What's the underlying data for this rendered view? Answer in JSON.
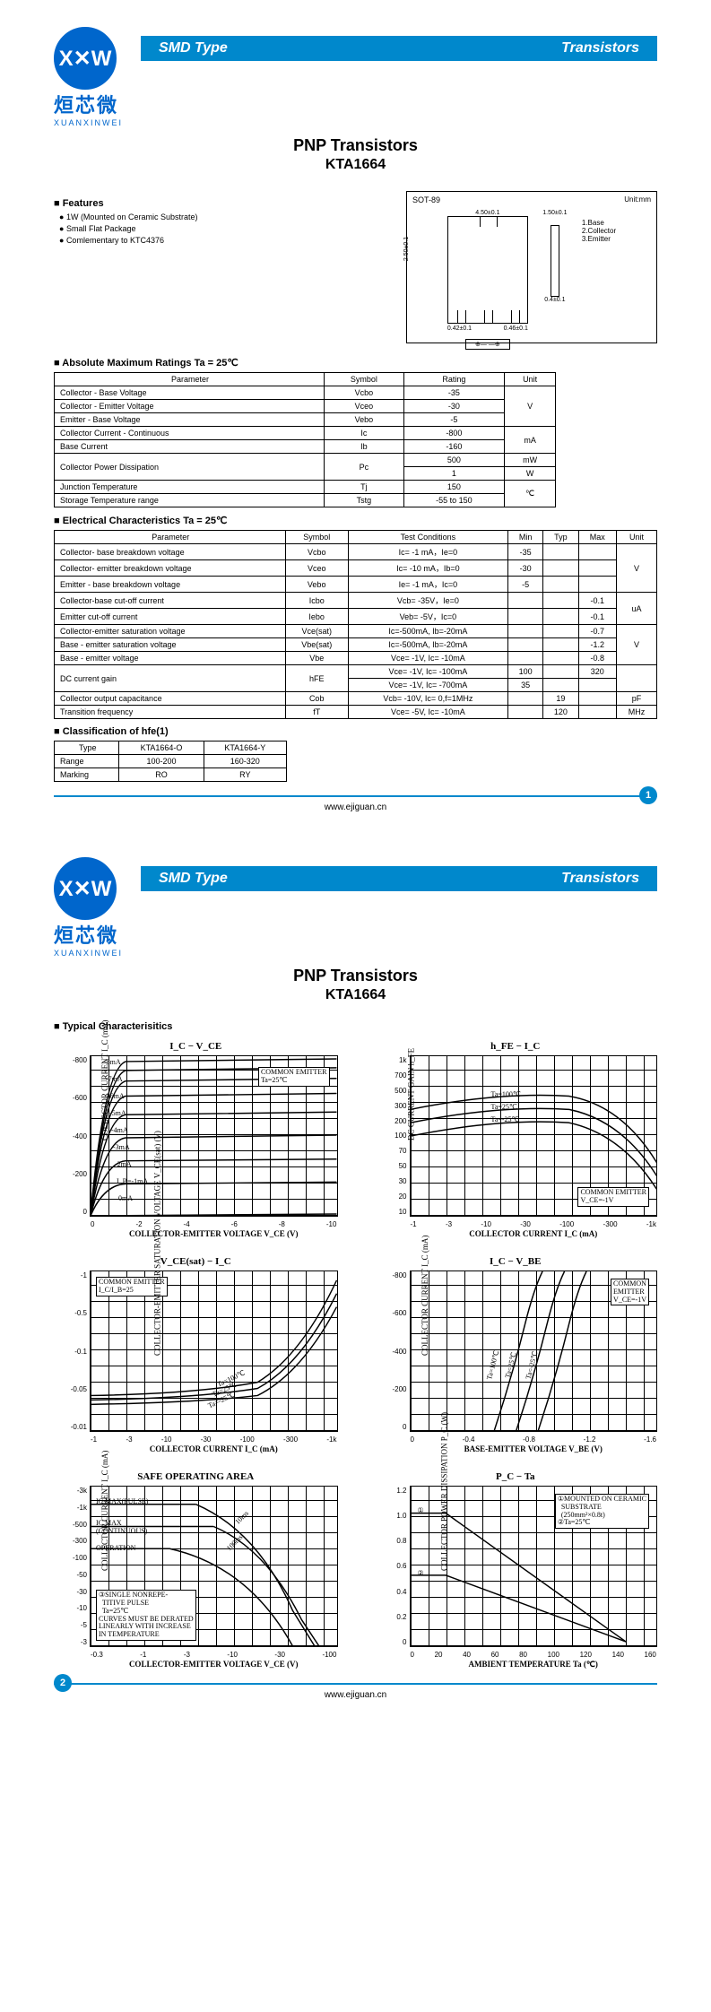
{
  "banner": {
    "left": "SMD Type",
    "right": "Transistors"
  },
  "logo": {
    "cn": "烜芯微",
    "en": "XUANXINWEI",
    "mark": "X✕W"
  },
  "subtitle": "PNP  Transistors",
  "part": "KTA1664",
  "features": {
    "hdr": "Features",
    "items": [
      "1W (Mounted on Ceramic Substrate)",
      "Small Flat Package",
      "Comlementary to KTC4376"
    ]
  },
  "pkg": {
    "label": "SOT-89",
    "unit": "Unit:mm",
    "dims": [
      "4.50±0.1",
      "2.50±0.1",
      "1.50±0.1",
      "0.42±0.1",
      "0.46±0.1",
      "0.4±0.1"
    ],
    "pins": [
      "1.Base",
      "2.Collector",
      "3.Emitter"
    ]
  },
  "tbl1": {
    "hdr": "Absolute Maximum Ratings Ta = 25℃",
    "cols": [
      "Parameter",
      "Symbol",
      "Rating",
      "Unit"
    ],
    "rows": [
      [
        "Collector - Base Voltage",
        "Vcbo",
        "-35",
        ""
      ],
      [
        "Collector - Emitter Voltage",
        "Vceo",
        "-30",
        "V"
      ],
      [
        "Emitter - Base Voltage",
        "Vebo",
        "-5",
        ""
      ],
      [
        "Collector Current - Continuous",
        "Ic",
        "-800",
        ""
      ],
      [
        "Base Current",
        "Ib",
        "-160",
        "mA"
      ],
      [
        "",
        "",
        "500",
        "mW"
      ],
      [
        "Collector Power Dissipation",
        "Pc",
        "1",
        "W"
      ],
      [
        "Junction Temperature",
        "Tj",
        "150",
        ""
      ],
      [
        "Storage Temperature range",
        "Tstg",
        "-55 to 150",
        "℃"
      ]
    ]
  },
  "tbl2": {
    "hdr": "Electrical Characteristics Ta = 25℃",
    "cols": [
      "Parameter",
      "Symbol",
      "Test Conditions",
      "Min",
      "Typ",
      "Max",
      "Unit"
    ],
    "rows": [
      [
        "Collector- base breakdown voltage",
        "Vcbo",
        "Ic= -1 mA，Ie=0",
        "-35",
        "",
        "",
        ""
      ],
      [
        "Collector- emitter breakdown voltage",
        "Vceo",
        "Ic= -10 mA，Ib=0",
        "-30",
        "",
        "",
        "V"
      ],
      [
        "Emitter - base breakdown voltage",
        "Vebo",
        "Ie= -1 mA，Ic=0",
        "-5",
        "",
        "",
        ""
      ],
      [
        "Collector-base cut-off current",
        "Icbo",
        "Vcb= -35V，Ie=0",
        "",
        "",
        "-0.1",
        ""
      ],
      [
        "Emitter cut-off current",
        "Iebo",
        "Veb= -5V，Ic=0",
        "",
        "",
        "-0.1",
        "uA"
      ],
      [
        "Collector-emitter saturation voltage",
        "Vce(sat)",
        "Ic=-500mA, Ib=-20mA",
        "",
        "",
        "-0.7",
        ""
      ],
      [
        "Base - emitter saturation voltage",
        "Vbe(sat)",
        "Ic=-500mA, Ib=-20mA",
        "",
        "",
        "-1.2",
        "V"
      ],
      [
        "Base - emitter voltage",
        "Vbe",
        "Vce= -1V, Ic= -10mA",
        "",
        "",
        "-0.8",
        ""
      ],
      [
        "",
        "",
        "Vce= -1V, Ic= -100mA",
        "100",
        "",
        "320",
        ""
      ],
      [
        "DC current gain",
        "hFE",
        "Vce= -1V, Ic= -700mA",
        "35",
        "",
        "",
        ""
      ],
      [
        "Collector output  capacitance",
        "Cob",
        "Vcb= -10V, Ic= 0,f=1MHz",
        "",
        "19",
        "",
        "pF"
      ],
      [
        "Transition frequency",
        "fT",
        "Vce= -5V, Ic= -10mA",
        "",
        "120",
        "",
        "MHz"
      ]
    ]
  },
  "tbl3": {
    "hdr": "Classification of hfe(1)",
    "cols": [
      "Type",
      "KTA1664-O",
      "KTA1664-Y"
    ],
    "rows": [
      [
        "Range",
        "100-200",
        "160-320"
      ],
      [
        "Marking",
        "RO",
        "RY"
      ]
    ]
  },
  "footer": "www.ejiguan.cn",
  "page2": {
    "hdr": "Typical  Characterisitics",
    "charts": [
      {
        "title": "I_C − V_CE",
        "ylab": "COLLECTOR CURRENT I_C  (mA)",
        "xlab": "COLLECTOR-EMITTER VOLTAGE V_CE  (V)",
        "yticks": [
          "-800",
          "-600",
          "-400",
          "-200",
          "0"
        ],
        "xticks": [
          "0",
          "-2",
          "-4",
          "-6",
          "-8",
          "-10"
        ],
        "note": "COMMON EMITTER\nTa=25℃",
        "note_pos": "top:12px;right:8px;",
        "curves": [
          "-8mA",
          "-7mA",
          "-6mA",
          "-5mA",
          "-4mA",
          "-3mA",
          "-2mA",
          "I_B=-1mA",
          "0mA"
        ]
      },
      {
        "title": "h_FE − I_C",
        "ylab": "DC CURRENT GAIN h_FE",
        "xlab": "COLLECTOR CURRENT I_C  (mA)",
        "yticks": [
          "1k",
          "700",
          "500",
          "300",
          "200",
          "100",
          "70",
          "50",
          "30",
          "20",
          "10"
        ],
        "xticks": [
          "-1",
          "-3",
          "-10",
          "-30",
          "-100",
          "-300",
          "-1k"
        ],
        "note": "COMMON EMITTER\nV_CE=-1V",
        "note_pos": "bottom:10px;right:8px;",
        "curves": [
          "Ta=100℃",
          "Ta=25℃",
          "Ta=-25℃"
        ]
      },
      {
        "title": "V_CE(sat)  − I_C",
        "ylab": "COLLECTOR-EMITTER SATURATION\nVOLTAGE V_CE(sat)  (V)",
        "xlab": "COLLECTOR CURRENT I_C  (mA)",
        "yticks": [
          "-1",
          "-0.5",
          "-0.1",
          "-0.05",
          "-0.01"
        ],
        "xticks": [
          "-1",
          "-3",
          "-10",
          "-30",
          "-100",
          "-300",
          "-1k"
        ],
        "note": "COMMON EMITTER\nI_C/I_B=25",
        "note_pos": "top:6px;left:6px;",
        "curves": [
          "Ta=100℃",
          "Ta=25℃",
          "Ta=-25℃"
        ]
      },
      {
        "title": "I_C − V_BE",
        "ylab": "COLLECTOR CURRENT I_C  (mA)",
        "xlab": "BASE-EMITTER VOLTAGE V_BE  (V)",
        "yticks": [
          "-800",
          "-600",
          "-400",
          "-200",
          "0"
        ],
        "xticks": [
          "0",
          "-0.4",
          "-0.8",
          "-1.2",
          "-1.6"
        ],
        "note": "COMMON\nEMITTER\nV_CE=-1V",
        "note_pos": "top:8px;right:8px;",
        "curves": [
          "Ta=100℃",
          "Ta=25℃",
          "Ta=-25℃"
        ]
      },
      {
        "title": "SAFE OPERATING AREA",
        "ylab": "COLLECTOR CURRENT I_C  (mA)",
        "xlab": "COLLECTOR-EMITTER VOLTAGE V_CE  (V)",
        "yticks": [
          "-3k",
          "-1k",
          "-500",
          "-300",
          "-100",
          "-50",
          "-30",
          "-10",
          "-5",
          "-3"
        ],
        "xticks": [
          "-0.3",
          "-1",
          "-3",
          "-10",
          "-30",
          "-100"
        ],
        "note": "③SINGLE NONREPE-\n  TITIVE PULSE\n  Ta=25℃\nCURVES MUST BE DERATED\nLINEARLY WITH INCREASE\nIN TEMPERATURE",
        "note_pos": "bottom:6px;left:6px;",
        "curves": [
          "IC MAX(PULSE)",
          "IC MAX (CONTINUOUS)",
          "OPERATION",
          "10ms",
          "100ms"
        ]
      },
      {
        "title": "P_C − Ta",
        "ylab": "COLLECTOR POWER DISSIPATION P_C  (W)",
        "xlab": "AMBIENT TEMPERATURE Ta  (℃)",
        "yticks": [
          "1.2",
          "1.0",
          "0.8",
          "0.6",
          "0.4",
          "0.2",
          "0"
        ],
        "xticks": [
          "0",
          "20",
          "40",
          "60",
          "80",
          "100",
          "120",
          "140",
          "160"
        ],
        "note": "①MOUNTED ON CERAMIC\n  SUBSTRATE\n  (250mm²×0.8t)\n②Ta=25℃",
        "note_pos": "top:8px;right:8px;",
        "curves": [
          "①",
          "②"
        ]
      }
    ]
  }
}
